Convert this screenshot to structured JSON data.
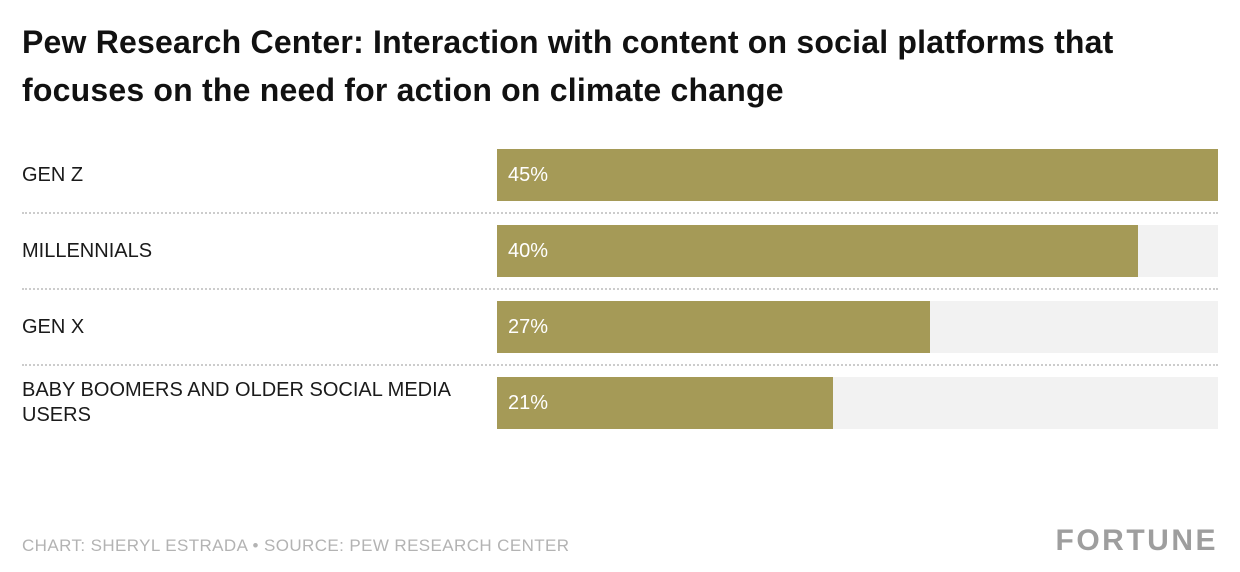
{
  "chart_data": {
    "type": "bar",
    "orientation": "horizontal",
    "title": "Pew Research Center: Interaction with content on social platforms that focuses on the need for action on climate change",
    "categories": [
      "GEN Z",
      "MILLENNIALS",
      "GEN X",
      "BABY BOOMERS AND OLDER SOCIAL MEDIA USERS"
    ],
    "values": [
      45,
      40,
      27,
      21
    ],
    "value_labels": [
      "45%",
      "40%",
      "27%",
      "21%"
    ],
    "xlim": [
      0,
      45
    ],
    "bar_color": "#a59a57",
    "track_color": "#f2f2f2",
    "legend": "none",
    "grid": "off"
  },
  "footer": {
    "credit": "CHART: SHERYL ESTRADA • SOURCE: PEW RESEARCH CENTER",
    "brand": "FORTUNE"
  }
}
